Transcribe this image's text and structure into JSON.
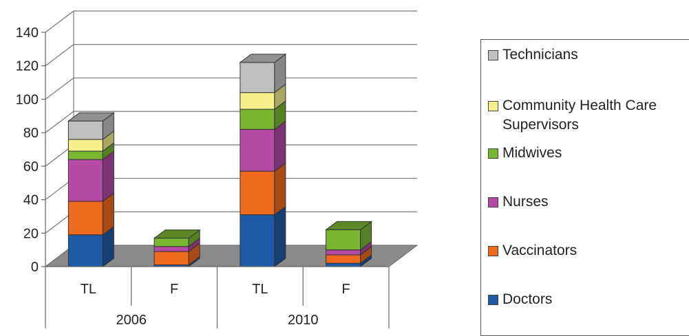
{
  "chart_data": {
    "type": "bar",
    "stacked": true,
    "three_d": true,
    "categories": [
      "TL",
      "F",
      "TL",
      "F"
    ],
    "groups": [
      {
        "label": "2006",
        "categories": [
          "TL",
          "F"
        ]
      },
      {
        "label": "2010",
        "categories": [
          "TL",
          "F"
        ]
      }
    ],
    "ylim": [
      0,
      140
    ],
    "yticks": [
      0,
      20,
      40,
      60,
      80,
      100,
      120,
      140
    ],
    "grid": true,
    "legend_position": "right",
    "series": [
      {
        "name": "Doctors",
        "color": "#1f5aa6",
        "values": [
          19,
          1,
          31,
          2
        ]
      },
      {
        "name": "Vaccinators",
        "color": "#ee6a1f",
        "values": [
          20,
          8,
          26,
          5
        ]
      },
      {
        "name": "Nurses",
        "color": "#b44aa3",
        "values": [
          25,
          3,
          25,
          3
        ]
      },
      {
        "name": "Midwives",
        "color": "#7ab631",
        "values": [
          5,
          5,
          12,
          12
        ]
      },
      {
        "name": "Community Health Care Supervisors",
        "color": "#f6f08d",
        "values": [
          7,
          0,
          10,
          0
        ]
      },
      {
        "name": "Technicians",
        "color": "#c0c0c0",
        "values": [
          11,
          0,
          18,
          0
        ]
      }
    ]
  }
}
